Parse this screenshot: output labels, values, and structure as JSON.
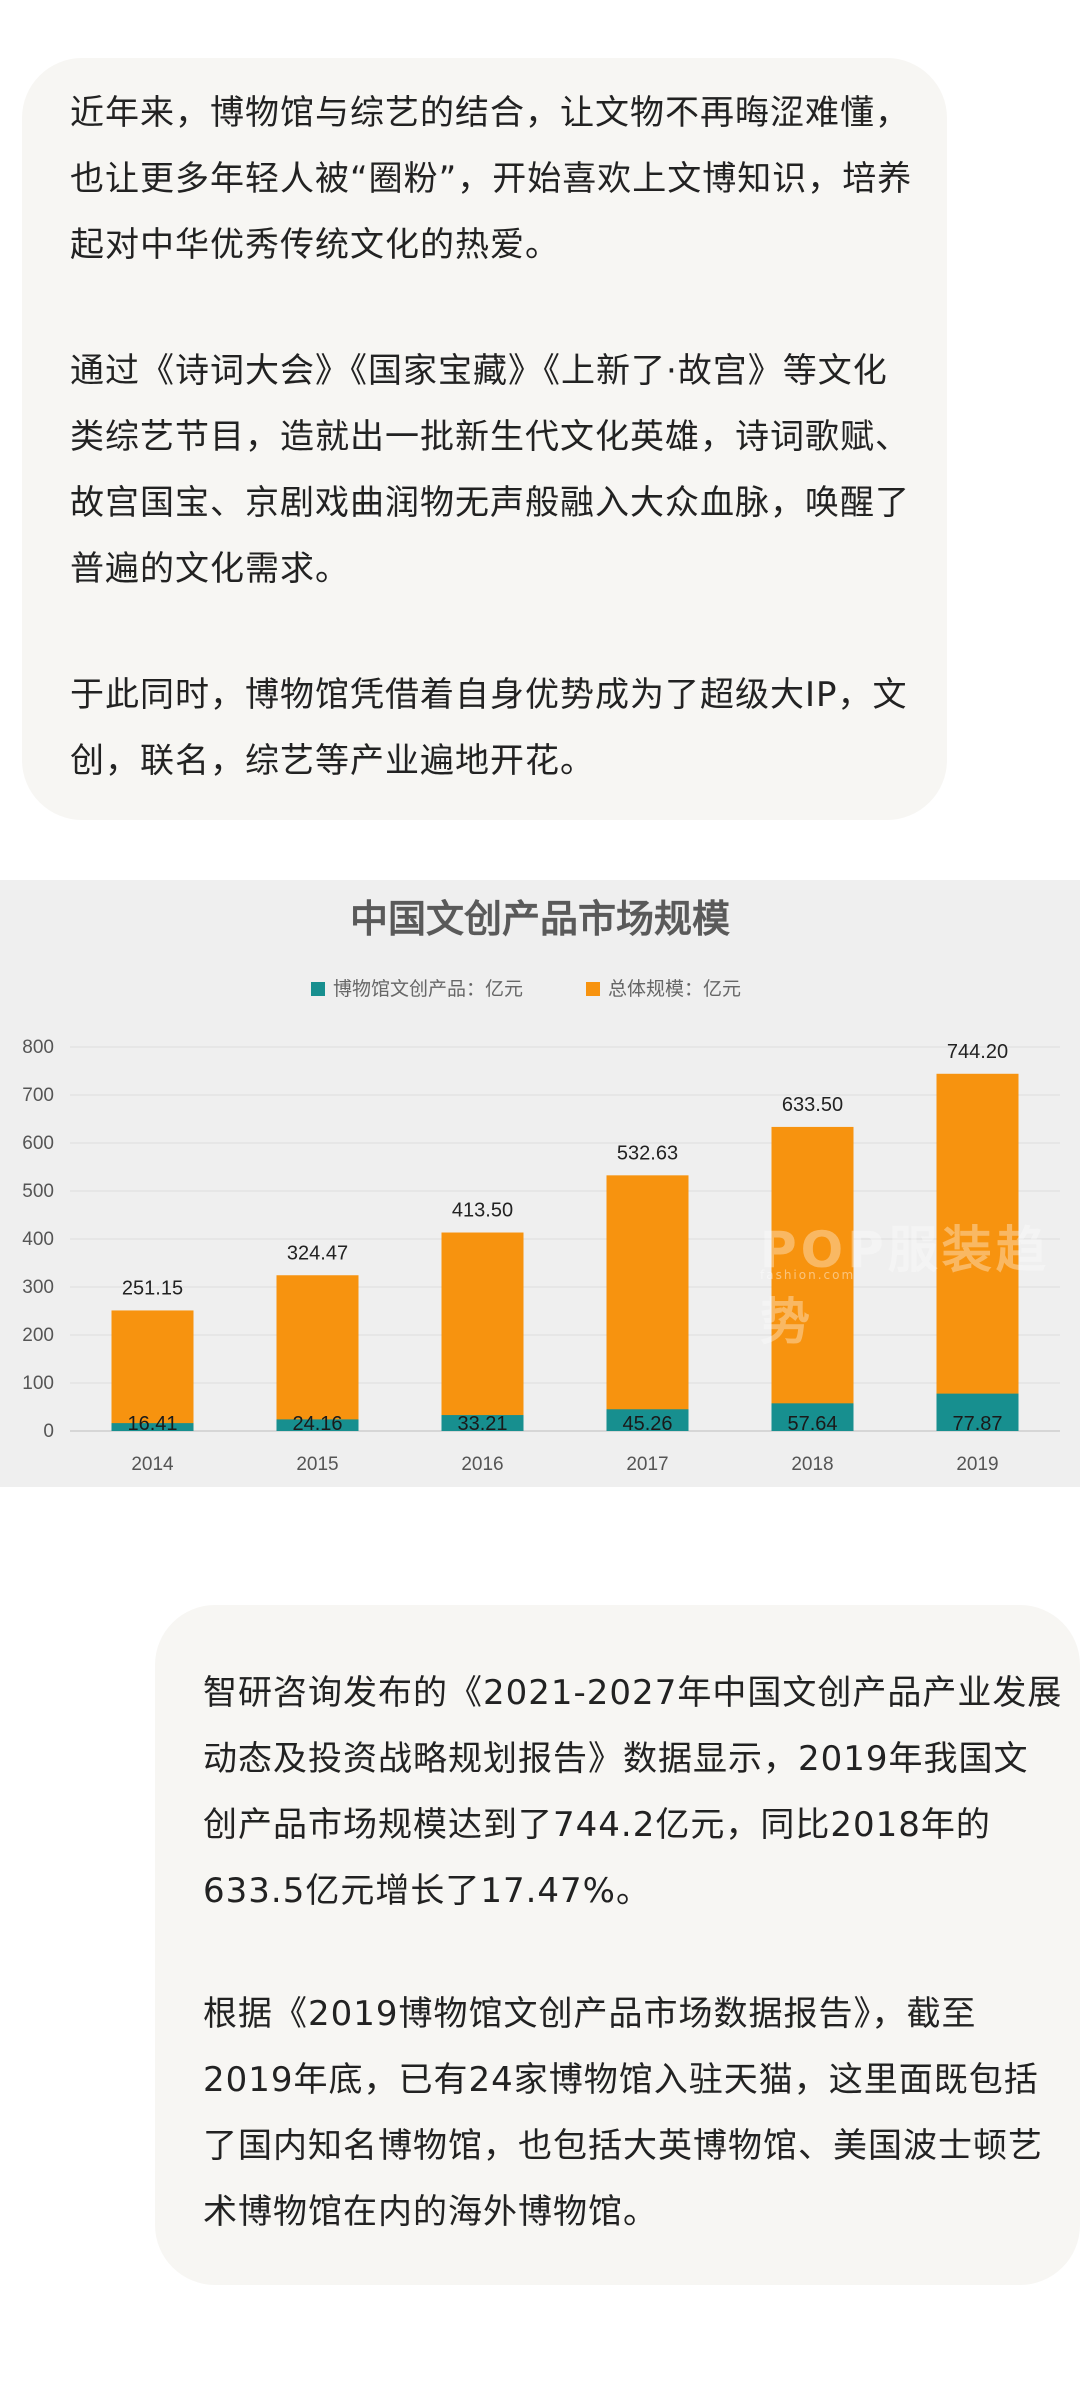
{
  "intro_card": {
    "p1": "近年来，博物馆与综艺的结合，让文物不再晦涩难懂，也让更多年轻人被“圈粉”，开始喜欢上文博知识，培养起对中华优秀传统文化的热爱。",
    "p2": "通过《诗词大会》《国家宝藏》《上新了·故宫》等文化类综艺节目，造就出一批新生代文化英雄，诗词歌赋、故宫国宝、京剧戏曲润物无声般融入大众血脉，唤醒了普遍的文化需求。",
    "p3": "于此同时，博物馆凭借着自身优势成为了超级大IP，文创，联名，综艺等产业遍地开花。"
  },
  "watermark": {
    "text": "POP",
    "text_cn": "服装趋势",
    "sub": "fashion.com"
  },
  "chart_data": {
    "type": "bar",
    "stacked": true,
    "title": "中国文创产品市场规模",
    "categories": [
      "2014",
      "2015",
      "2016",
      "2017",
      "2018",
      "2019"
    ],
    "series": [
      {
        "name": "博物馆文创产品：亿元",
        "values": [
          16.41,
          24.16,
          33.21,
          45.26,
          57.64,
          77.87
        ],
        "color": "#178f8f"
      },
      {
        "name": "总体规模：亿元",
        "values": [
          251.15,
          324.47,
          413.5,
          532.63,
          633.5,
          744.2
        ],
        "color": "#f7930f"
      }
    ],
    "value_labels": {
      "博物馆文创产品：亿元": [
        "16.41",
        "24.16",
        "33.21",
        "45.26",
        "57.64",
        "77.87"
      ],
      "总体规模：亿元": [
        "251.15",
        "324.47",
        "413.50",
        "532.63",
        "633.50",
        "744.20"
      ]
    },
    "yticks": [
      "0",
      "100",
      "200",
      "300",
      "400",
      "500",
      "600",
      "700",
      "800"
    ],
    "ylim": [
      0,
      800
    ],
    "xlabel": "",
    "ylabel": "",
    "legend_position": "top-center",
    "grid": true
  },
  "report_card": {
    "p1": "智研咨询发布的《2021-2027年中国文创产品产业发展动态及投资战略规划报告》数据显示，2019年我国文创产品市场规模达到了744.2亿元，同比2018年的633.5亿元增长了17.47%。",
    "p2": "根据《2019博物馆文创产品市场数据报告》，截至2019年底，已有24家博物馆入驻天猫，这里面既包括了国内知名博物馆，也包括大英博物馆、美国波士顿艺术博物馆在内的海外博物馆。"
  }
}
